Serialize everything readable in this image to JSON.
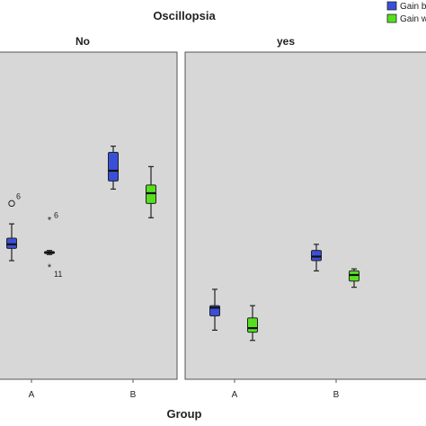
{
  "chart_data": {
    "type": "boxplot",
    "title": "Oscillopsia",
    "xlabel": "Group",
    "ylabel": "",
    "ylim": [
      0.0,
      1.6
    ],
    "categories": [
      "A",
      "B"
    ],
    "panels": [
      {
        "name": "No",
        "groups": [
          {
            "category": "A",
            "series": [
              {
                "series_index": 0,
                "min": 0.58,
                "q1": 0.64,
                "median": 0.66,
                "q3": 0.69,
                "max": 0.76,
                "outliers": [
                  {
                    "value": 0.86,
                    "marker": "circle",
                    "label": "6"
                  }
                ]
              },
              {
                "series_index": 1,
                "min": 0.61,
                "q1": 0.615,
                "median": 0.62,
                "q3": 0.625,
                "max": 0.63,
                "outliers": [
                  {
                    "value": 0.78,
                    "marker": "star",
                    "label": "6"
                  },
                  {
                    "value": 0.55,
                    "marker": "star",
                    "label": "11"
                  }
                ]
              }
            ]
          },
          {
            "category": "B",
            "series": [
              {
                "series_index": 0,
                "min": 0.93,
                "q1": 0.97,
                "median": 1.02,
                "q3": 1.11,
                "max": 1.14,
                "outliers": []
              },
              {
                "series_index": 1,
                "min": 0.79,
                "q1": 0.86,
                "median": 0.91,
                "q3": 0.95,
                "max": 1.04,
                "outliers": []
              }
            ]
          }
        ]
      },
      {
        "name": "yes",
        "groups": [
          {
            "category": "A",
            "series": [
              {
                "series_index": 0,
                "min": 0.24,
                "q1": 0.31,
                "median": 0.35,
                "q3": 0.36,
                "max": 0.44,
                "outliers": []
              },
              {
                "series_index": 1,
                "min": 0.19,
                "q1": 0.23,
                "median": 0.25,
                "q3": 0.3,
                "max": 0.36,
                "outliers": []
              }
            ]
          },
          {
            "category": "B",
            "series": [
              {
                "series_index": 0,
                "min": 0.53,
                "q1": 0.58,
                "median": 0.6,
                "q3": 0.63,
                "max": 0.66,
                "outliers": []
              },
              {
                "series_index": 1,
                "min": 0.45,
                "q1": 0.48,
                "median": 0.51,
                "q3": 0.53,
                "max": 0.54,
                "outliers": []
              }
            ]
          }
        ]
      }
    ],
    "legend": {
      "placement": "top-right",
      "items": [
        {
          "label": "Gain b",
          "color": "#3a4fd8"
        },
        {
          "label": "Gain w",
          "color": "#55e01f"
        }
      ]
    },
    "colors": {
      "panel_bg": "#d7d7d7",
      "panel_border": "#555555",
      "strip_bg": "#ffffff",
      "text": "#222222"
    }
  }
}
